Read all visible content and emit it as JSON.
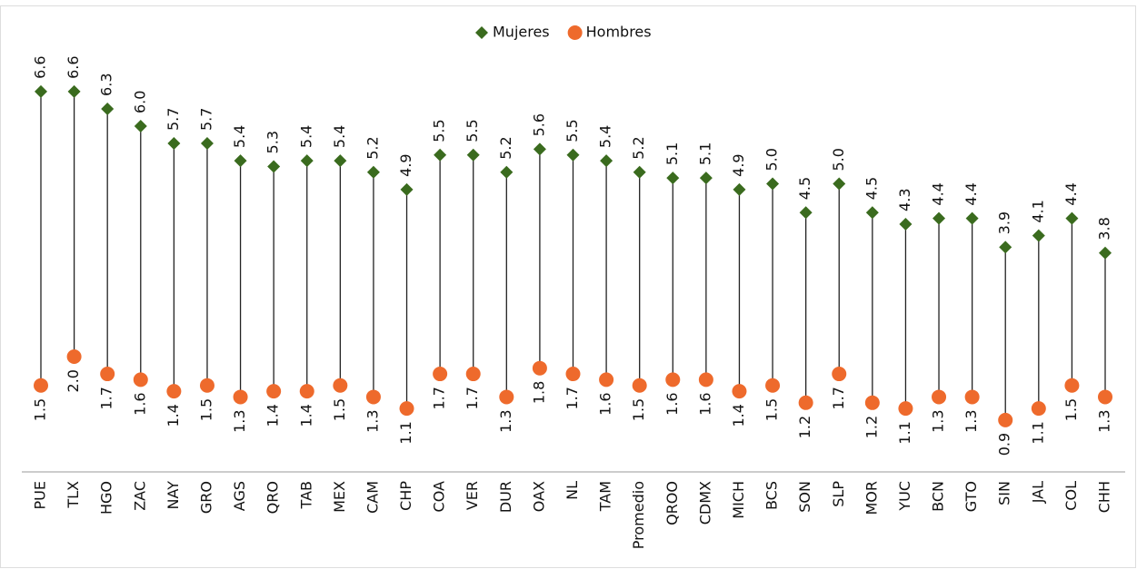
{
  "chart_data": {
    "type": "dumbbell",
    "categories": [
      "PUE",
      "TLX",
      "HGO",
      "ZAC",
      "NAY",
      "GRO",
      "AGS",
      "QRO",
      "TAB",
      "MEX",
      "CAM",
      "CHP",
      "COA",
      "VER",
      "DUR",
      "OAX",
      "NL",
      "TAM",
      "Promedio",
      "QROO",
      "CDMX",
      "MICH",
      "BCS",
      "SON",
      "SLP",
      "MOR",
      "YUC",
      "BCN",
      "GTO",
      "SIN",
      "JAL",
      "COL",
      "CHH"
    ],
    "series": [
      {
        "name": "Mujeres",
        "color": "#3a6b1e",
        "marker": "diamond",
        "values": [
          6.6,
          6.6,
          6.3,
          6.0,
          5.7,
          5.7,
          5.4,
          5.3,
          5.4,
          5.4,
          5.2,
          4.9,
          5.5,
          5.5,
          5.2,
          5.6,
          5.5,
          5.4,
          5.2,
          5.1,
          5.1,
          4.9,
          5.0,
          4.5,
          5.0,
          4.5,
          4.3,
          4.4,
          4.4,
          3.9,
          4.1,
          4.4,
          3.8
        ],
        "value_labels": [
          "6.6",
          "6.6",
          "6.3",
          "6.0",
          "5.7",
          "5.7",
          "5.4",
          "5.3",
          "5.4",
          "5.4",
          "5.2",
          "4.9",
          "5.5",
          "5.5",
          "5.2",
          "5.6",
          "5.5",
          "5.4",
          "5.2",
          "5.1",
          "5.1",
          "4.9",
          "5.0",
          "4.5",
          "5.0",
          "4.5",
          "4.3",
          "4.4",
          "4.4",
          "3.9",
          "4.1",
          "4.4",
          "3.8"
        ]
      },
      {
        "name": "Hombres",
        "color": "#ee6a2c",
        "marker": "circle",
        "values": [
          1.5,
          2.0,
          1.7,
          1.6,
          1.4,
          1.5,
          1.3,
          1.4,
          1.4,
          1.5,
          1.3,
          1.1,
          1.7,
          1.7,
          1.3,
          1.8,
          1.7,
          1.6,
          1.5,
          1.6,
          1.6,
          1.4,
          1.5,
          1.2,
          1.7,
          1.2,
          1.1,
          1.3,
          1.3,
          0.9,
          1.1,
          1.5,
          1.3
        ],
        "value_labels": [
          "1.5",
          "2.0",
          "1.7",
          "1.6",
          "1.4",
          "1.5",
          "1.3",
          "1.4",
          "1.4",
          "1.5",
          "1.3",
          "1.1",
          "1.7",
          "1.7",
          "1.3",
          "1.8",
          "1.7",
          "1.6",
          "1.5",
          "1.6",
          "1.6",
          "1.4",
          "1.5",
          "1.2",
          "1.7",
          "1.2",
          "1.1",
          "1.3",
          "1.3",
          "0.9",
          "1.1",
          "1.5",
          "1.3"
        ]
      }
    ],
    "legend": "top"
  }
}
